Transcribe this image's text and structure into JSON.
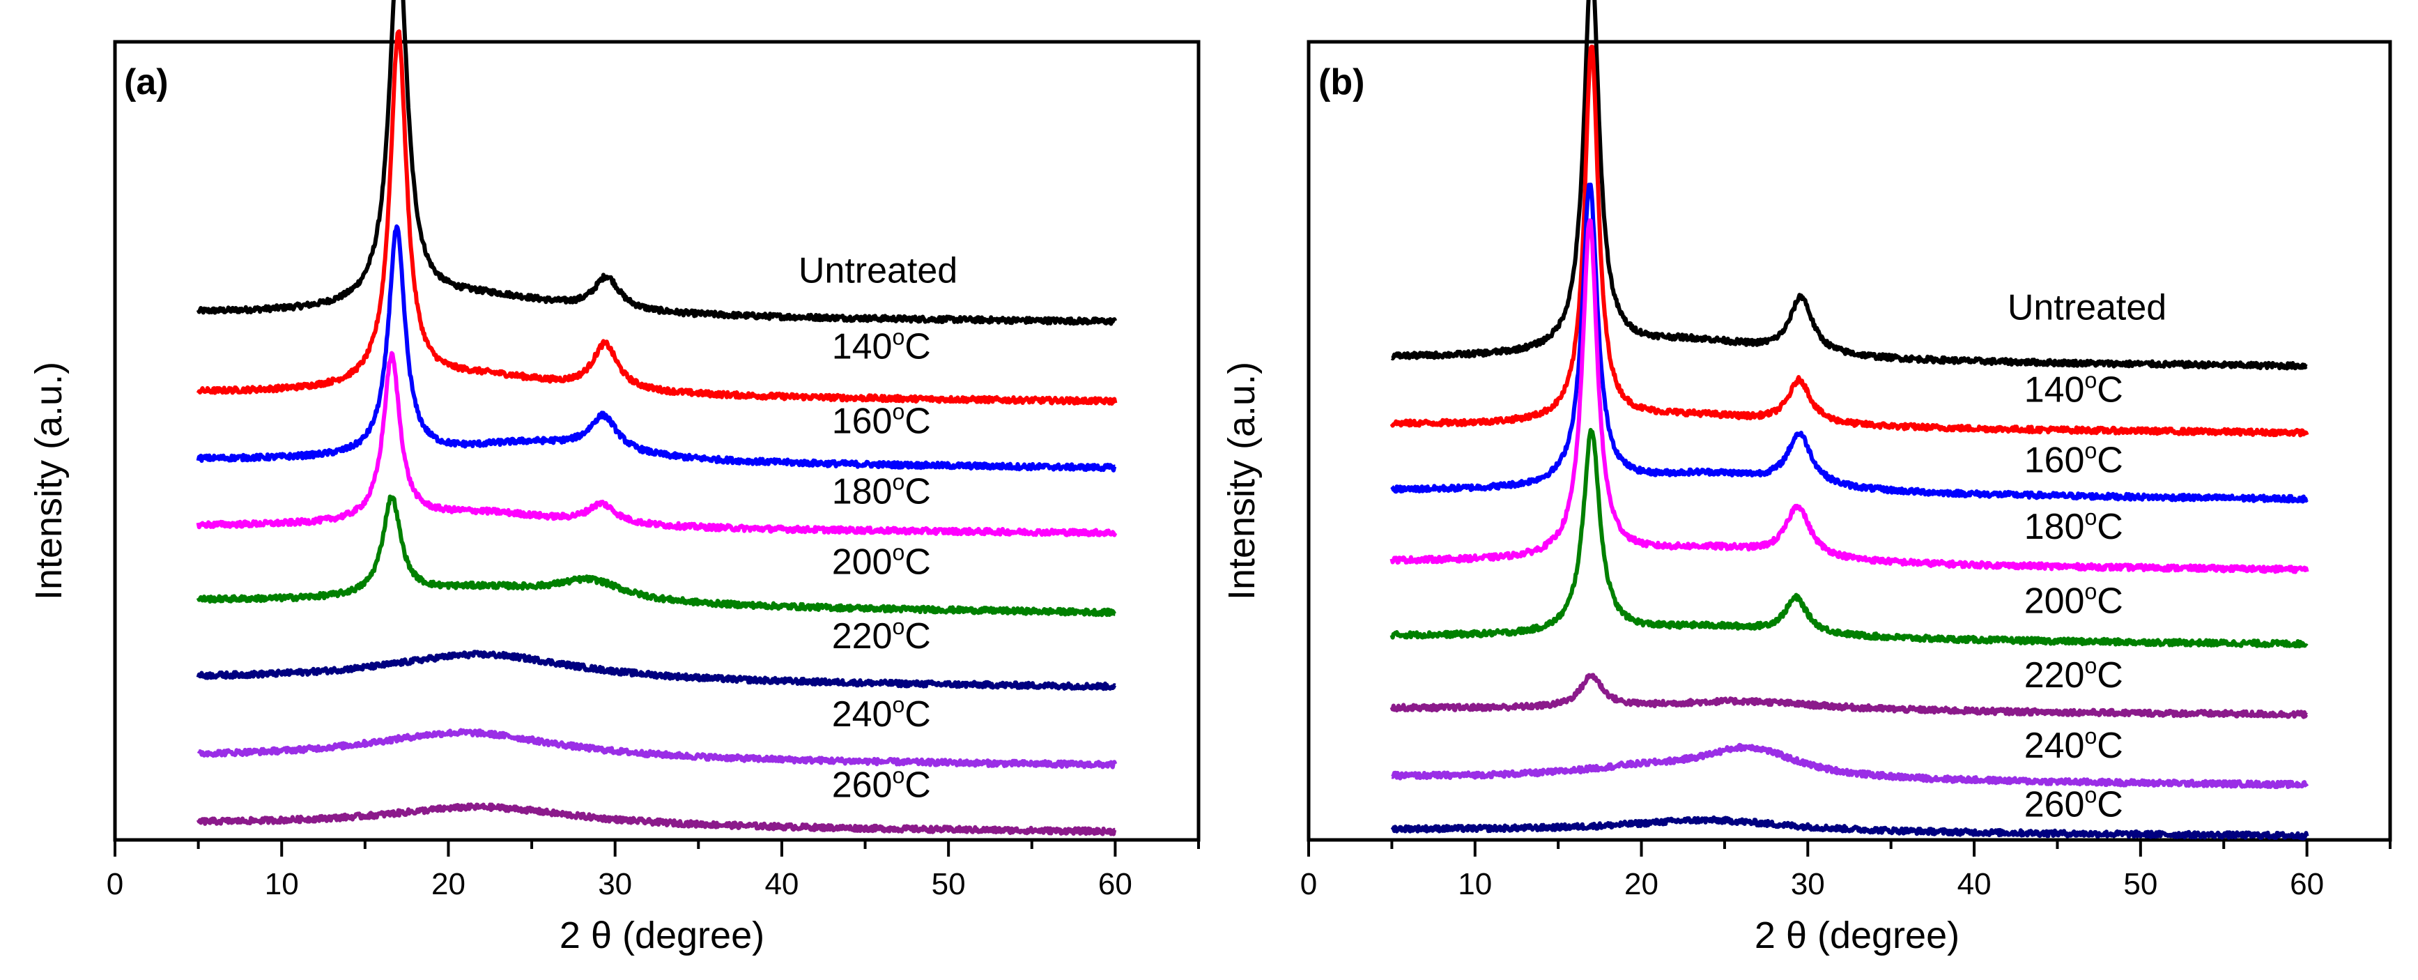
{
  "chart_data": [
    {
      "panel": "(a)",
      "type": "line",
      "title": "",
      "xlabel": "2 θ (degree)",
      "ylabel": "Intensity (a.u.)",
      "xlim": [
        0,
        65
      ],
      "ylim": [
        0,
        10.2
      ],
      "xticks": [
        0,
        10,
        20,
        30,
        40,
        50,
        60
      ],
      "grid": false,
      "series": [
        {
          "name": "Untreated",
          "label_main": "Untreated",
          "label_sup": "",
          "color": "#000000",
          "baseline": 6.72,
          "tail": 6.62,
          "label_x": 41,
          "label_y": 7.12,
          "peaks": [
            {
              "x": 17.0,
              "h": 4.65,
              "w": 0.65
            },
            {
              "x": 29.5,
              "h": 0.42,
              "w": 0.9
            },
            {
              "x": 22,
              "h": 0.25,
              "w": 6
            }
          ]
        },
        {
          "name": "140°C",
          "label_main": "140",
          "label_sup": "o",
          "unit": "C",
          "color": "#ff0000",
          "baseline": 5.7,
          "tail": 5.6,
          "label_x": 43,
          "label_y": 6.15,
          "peaks": [
            {
              "x": 17.0,
              "h": 4.5,
              "w": 0.6
            },
            {
              "x": 29.4,
              "h": 0.58,
              "w": 0.9
            },
            {
              "x": 22,
              "h": 0.25,
              "w": 6
            }
          ]
        },
        {
          "name": "160°C",
          "label_main": "160",
          "label_sup": "o",
          "unit": "C",
          "color": "#0000ff",
          "baseline": 4.85,
          "tail": 4.75,
          "label_x": 43,
          "label_y": 5.2,
          "peaks": [
            {
              "x": 16.9,
              "h": 2.9,
              "w": 0.6
            },
            {
              "x": 29.3,
              "h": 0.45,
              "w": 1.0
            },
            {
              "x": 25,
              "h": 0.25,
              "w": 6
            }
          ]
        },
        {
          "name": "180°C",
          "label_main": "180",
          "label_sup": "o",
          "unit": "C",
          "color": "#ff00ff",
          "baseline": 4.0,
          "tail": 3.92,
          "label_x": 43,
          "label_y": 4.3,
          "peaks": [
            {
              "x": 16.6,
              "h": 2.1,
              "w": 0.6
            },
            {
              "x": 29.2,
              "h": 0.25,
              "w": 1.0
            },
            {
              "x": 22,
              "h": 0.2,
              "w": 6
            }
          ]
        },
        {
          "name": "200°C",
          "label_main": "200",
          "label_sup": "o",
          "unit": "C",
          "color": "#008000",
          "baseline": 3.05,
          "tail": 2.9,
          "label_x": 43,
          "label_y": 3.4,
          "peaks": [
            {
              "x": 16.6,
              "h": 1.25,
              "w": 0.65
            },
            {
              "x": 28.5,
              "h": 0.25,
              "w": 2.5
            },
            {
              "x": 22,
              "h": 0.2,
              "w": 6
            }
          ]
        },
        {
          "name": "220°C",
          "label_main": "220",
          "label_sup": "o",
          "unit": "C",
          "color": "#000080",
          "baseline": 2.05,
          "tail": 1.95,
          "label_x": 43,
          "label_y": 2.45,
          "peaks": [
            {
              "x": 22,
              "h": 0.35,
              "w": 7
            }
          ]
        },
        {
          "name": "240°C",
          "label_main": "240",
          "label_sup": "o",
          "unit": "C",
          "color": "#9a2ee6",
          "baseline": 1.05,
          "tail": 0.95,
          "label_x": 43,
          "label_y": 1.45,
          "peaks": [
            {
              "x": 21,
              "h": 0.35,
              "w": 7
            }
          ]
        },
        {
          "name": "260°C",
          "label_main": "260",
          "label_sup": "o",
          "unit": "C",
          "color": "#8b1a8b",
          "baseline": 0.2,
          "tail": 0.1,
          "label_x": 43,
          "label_y": 0.55,
          "peaks": [
            {
              "x": 22,
              "h": 0.25,
              "w": 7
            }
          ]
        }
      ]
    },
    {
      "panel": "(b)",
      "type": "line",
      "title": "",
      "xlabel": "2 θ (degree)",
      "ylabel": "Intensity (a.u.)",
      "xlim": [
        0,
        65
      ],
      "ylim": [
        0,
        10.2
      ],
      "xticks": [
        0,
        10,
        20,
        30,
        40,
        50,
        60
      ],
      "grid": false,
      "series": [
        {
          "name": "Untreated",
          "label_main": "Untreated",
          "label_sup": "",
          "color": "#000000",
          "baseline": 6.15,
          "tail": 6.05,
          "label_x": 42,
          "label_y": 6.65,
          "peaks": [
            {
              "x": 17.0,
              "h": 4.95,
              "w": 0.55
            },
            {
              "x": 29.6,
              "h": 0.72,
              "w": 0.8
            },
            {
              "x": 23,
              "h": 0.25,
              "w": 6
            }
          ]
        },
        {
          "name": "140°C",
          "label_main": "140",
          "label_sup": "o",
          "unit": "C",
          "color": "#ff0000",
          "baseline": 5.3,
          "tail": 5.2,
          "label_x": 43,
          "label_y": 5.6,
          "peaks": [
            {
              "x": 17.0,
              "h": 4.8,
              "w": 0.5
            },
            {
              "x": 29.5,
              "h": 0.55,
              "w": 0.8
            },
            {
              "x": 23,
              "h": 0.15,
              "w": 6
            }
          ]
        },
        {
          "name": "160°C",
          "label_main": "160",
          "label_sup": "o",
          "unit": "C",
          "color": "#0000ff",
          "baseline": 4.45,
          "tail": 4.35,
          "label_x": 43,
          "label_y": 4.7,
          "peaks": [
            {
              "x": 16.9,
              "h": 3.85,
              "w": 0.55
            },
            {
              "x": 29.5,
              "h": 0.65,
              "w": 0.85
            },
            {
              "x": 24,
              "h": 0.25,
              "w": 6
            }
          ]
        },
        {
          "name": "180°C",
          "label_main": "180",
          "label_sup": "o",
          "unit": "C",
          "color": "#ff00ff",
          "baseline": 3.55,
          "tail": 3.45,
          "label_x": 43,
          "label_y": 3.85,
          "peaks": [
            {
              "x": 16.9,
              "h": 4.3,
              "w": 0.55
            },
            {
              "x": 29.4,
              "h": 0.65,
              "w": 0.85
            },
            {
              "x": 24,
              "h": 0.2,
              "w": 6
            }
          ]
        },
        {
          "name": "200°C",
          "label_main": "200",
          "label_sup": "o",
          "unit": "C",
          "color": "#008000",
          "baseline": 2.6,
          "tail": 2.5,
          "label_x": 43,
          "label_y": 2.9,
          "peaks": [
            {
              "x": 17.0,
              "h": 2.6,
              "w": 0.6
            },
            {
              "x": 29.3,
              "h": 0.45,
              "w": 0.8
            },
            {
              "x": 24,
              "h": 0.15,
              "w": 6
            }
          ]
        },
        {
          "name": "220°C",
          "label_main": "220",
          "label_sup": "o",
          "unit": "C",
          "color": "#8b1a8b",
          "baseline": 1.68,
          "tail": 1.6,
          "label_x": 43,
          "label_y": 1.95,
          "peaks": [
            {
              "x": 17.0,
              "h": 0.4,
              "w": 0.8
            },
            {
              "x": 26,
              "h": 0.12,
              "w": 6
            }
          ]
        },
        {
          "name": "240°C",
          "label_main": "240",
          "label_sup": "o",
          "unit": "C",
          "color": "#9a2ee6",
          "baseline": 0.8,
          "tail": 0.7,
          "label_x": 43,
          "label_y": 1.05,
          "peaks": [
            {
              "x": 26.5,
              "h": 0.38,
              "w": 3.5
            },
            {
              "x": 20,
              "h": 0.12,
              "w": 5
            }
          ]
        },
        {
          "name": "260°C",
          "label_main": "260",
          "label_sup": "o",
          "unit": "C",
          "color": "#000080",
          "baseline": 0.13,
          "tail": 0.05,
          "label_x": 43,
          "label_y": 0.3,
          "peaks": [
            {
              "x": 24,
              "h": 0.15,
              "w": 6
            }
          ]
        }
      ]
    }
  ]
}
